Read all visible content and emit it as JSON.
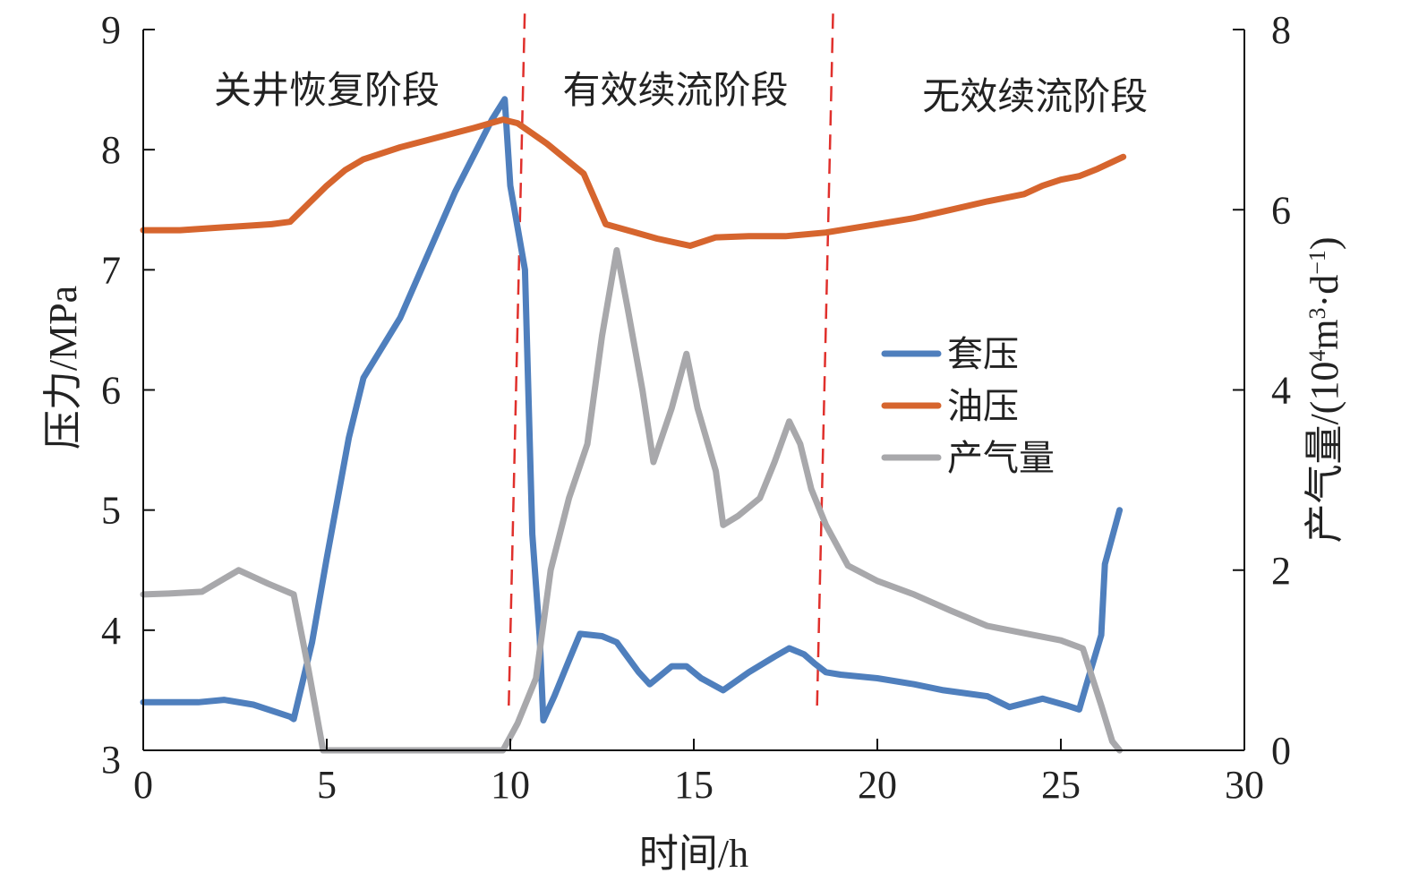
{
  "chart_data": {
    "type": "line",
    "title": "",
    "xlabel": "时间/h",
    "ylabel_left": "压力/MPa",
    "ylabel_right_parts": [
      "产气量/(10",
      "4",
      "m",
      "3",
      "·d",
      "−1",
      ")"
    ],
    "xlim": [
      0,
      30
    ],
    "ylim_left": [
      3,
      9
    ],
    "ylim_right": [
      0,
      8
    ],
    "x_ticks": [
      "0",
      "5",
      "10",
      "15",
      "20",
      "25",
      "30"
    ],
    "y_left_ticks": [
      "3",
      "4",
      "5",
      "6",
      "7",
      "8",
      "9"
    ],
    "y_right_ticks": [
      "0",
      "2",
      "4",
      "6",
      "8"
    ],
    "grid": false,
    "legend_position": "center-right",
    "phase_boundaries": [
      10.3,
      18.7
    ],
    "phases": [
      {
        "label": "关井恢复阶段",
        "x": 5.0,
        "y": 8.5
      },
      {
        "label": "有效续流阶段",
        "x": 14.5,
        "y": 8.5
      },
      {
        "label": "无效续流阶段",
        "x": 24.3,
        "y": 8.45
      }
    ],
    "series": [
      {
        "name": "套压",
        "axis": "left",
        "color": "#4f7fbd",
        "points": [
          [
            0,
            3.4
          ],
          [
            1.5,
            3.4
          ],
          [
            2.2,
            3.42
          ],
          [
            3,
            3.38
          ],
          [
            4,
            3.28
          ],
          [
            4.1,
            3.26
          ],
          [
            4.6,
            3.9
          ],
          [
            5,
            4.6
          ],
          [
            5.6,
            5.6
          ],
          [
            6,
            6.1
          ],
          [
            7,
            6.6
          ],
          [
            8,
            7.3
          ],
          [
            8.5,
            7.65
          ],
          [
            9,
            7.95
          ],
          [
            9.5,
            8.25
          ],
          [
            9.85,
            8.42
          ],
          [
            10,
            7.7
          ],
          [
            10.4,
            7.0
          ],
          [
            10.6,
            4.8
          ],
          [
            10.8,
            3.95
          ],
          [
            10.9,
            3.25
          ],
          [
            11.2,
            3.45
          ],
          [
            11.6,
            3.75
          ],
          [
            11.9,
            3.97
          ],
          [
            12.5,
            3.95
          ],
          [
            12.9,
            3.9
          ],
          [
            13.5,
            3.65
          ],
          [
            13.8,
            3.55
          ],
          [
            14.4,
            3.7
          ],
          [
            14.8,
            3.7
          ],
          [
            15.2,
            3.6
          ],
          [
            15.8,
            3.5
          ],
          [
            16.5,
            3.65
          ],
          [
            17.2,
            3.78
          ],
          [
            17.6,
            3.85
          ],
          [
            18,
            3.8
          ],
          [
            18.3,
            3.72
          ],
          [
            18.6,
            3.65
          ],
          [
            19,
            3.63
          ],
          [
            20,
            3.6
          ],
          [
            21,
            3.55
          ],
          [
            21.8,
            3.5
          ],
          [
            23,
            3.45
          ],
          [
            23.6,
            3.36
          ],
          [
            24.5,
            3.43
          ],
          [
            25.2,
            3.37
          ],
          [
            25.5,
            3.34
          ],
          [
            25.7,
            3.55
          ],
          [
            26.1,
            3.96
          ],
          [
            26.2,
            4.55
          ],
          [
            26.6,
            5.0
          ]
        ]
      },
      {
        "name": "油压",
        "axis": "left",
        "color": "#d6652e",
        "points": [
          [
            0,
            7.33
          ],
          [
            1,
            7.33
          ],
          [
            2,
            7.35
          ],
          [
            3,
            7.37
          ],
          [
            3.5,
            7.38
          ],
          [
            4,
            7.4
          ],
          [
            4.5,
            7.55
          ],
          [
            5,
            7.7
          ],
          [
            5.5,
            7.83
          ],
          [
            6,
            7.92
          ],
          [
            7,
            8.02
          ],
          [
            8,
            8.1
          ],
          [
            9,
            8.18
          ],
          [
            9.8,
            8.25
          ],
          [
            10.2,
            8.22
          ],
          [
            11,
            8.05
          ],
          [
            12,
            7.8
          ],
          [
            12.6,
            7.38
          ],
          [
            13.3,
            7.32
          ],
          [
            14,
            7.26
          ],
          [
            14.9,
            7.2
          ],
          [
            15.6,
            7.27
          ],
          [
            16.5,
            7.28
          ],
          [
            17.5,
            7.28
          ],
          [
            18.6,
            7.31
          ],
          [
            19.8,
            7.37
          ],
          [
            21,
            7.43
          ],
          [
            22,
            7.5
          ],
          [
            23,
            7.57
          ],
          [
            24,
            7.63
          ],
          [
            24.5,
            7.7
          ],
          [
            25,
            7.75
          ],
          [
            25.5,
            7.78
          ],
          [
            26,
            7.84
          ],
          [
            26.7,
            7.94
          ]
        ]
      },
      {
        "name": "产气量",
        "axis": "right",
        "color": "#a8a8ab",
        "points": [
          [
            0,
            1.73
          ],
          [
            0.7,
            1.74
          ],
          [
            1.6,
            1.76
          ],
          [
            2.6,
            2.0
          ],
          [
            3.4,
            1.85
          ],
          [
            4.1,
            1.73
          ],
          [
            4.5,
            0.9
          ],
          [
            4.9,
            0.0
          ],
          [
            9.8,
            0.0
          ],
          [
            10.2,
            0.3
          ],
          [
            10.7,
            0.8
          ],
          [
            11.1,
            2.0
          ],
          [
            11.6,
            2.8
          ],
          [
            12.1,
            3.4
          ],
          [
            12.5,
            4.6
          ],
          [
            12.9,
            5.55
          ],
          [
            13.2,
            4.9
          ],
          [
            13.6,
            4.0
          ],
          [
            13.9,
            3.2
          ],
          [
            14.4,
            3.8
          ],
          [
            14.8,
            4.4
          ],
          [
            15.1,
            3.8
          ],
          [
            15.6,
            3.1
          ],
          [
            15.8,
            2.5
          ],
          [
            16.2,
            2.6
          ],
          [
            16.8,
            2.8
          ],
          [
            17.2,
            3.2
          ],
          [
            17.6,
            3.65
          ],
          [
            17.9,
            3.4
          ],
          [
            18.2,
            2.9
          ],
          [
            18.6,
            2.5
          ],
          [
            19.2,
            2.05
          ],
          [
            20,
            1.88
          ],
          [
            21,
            1.73
          ],
          [
            22,
            1.55
          ],
          [
            23,
            1.38
          ],
          [
            24,
            1.3
          ],
          [
            25,
            1.22
          ],
          [
            25.6,
            1.13
          ],
          [
            26.1,
            0.5
          ],
          [
            26.4,
            0.1
          ],
          [
            26.6,
            0.0
          ]
        ]
      }
    ]
  },
  "styles": {
    "axis_color": "#111111",
    "boundary_color": "#e0302c"
  }
}
